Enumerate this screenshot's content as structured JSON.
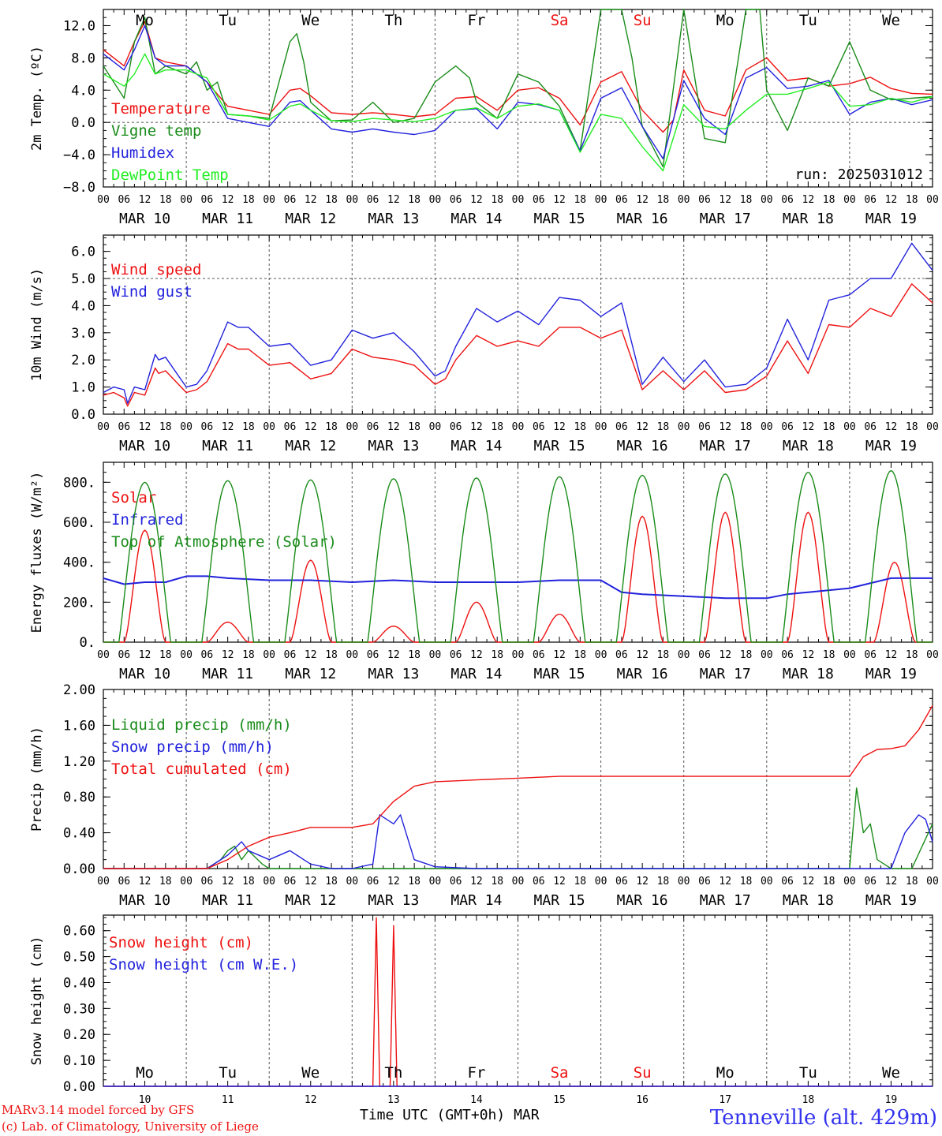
{
  "colors": {
    "red": "#ee1111",
    "darkgreen": "#1a8c1a",
    "blue": "#2222dd",
    "lightgreen": "#22ee22",
    "grid": "#555555",
    "location": "#3333ee"
  },
  "header_days": [
    "Mo",
    "Tu",
    "We",
    "Th",
    "Fr",
    "Sa",
    "Su",
    "Mo",
    "Tu",
    "We"
  ],
  "weekend_days": [
    5,
    6
  ],
  "hour_ticks": [
    "00",
    "06",
    "12",
    "18"
  ],
  "date_labels": [
    "MAR 10",
    "MAR 11",
    "MAR 12",
    "MAR 13",
    "MAR 14",
    "MAR 15",
    "MAR 16",
    "MAR 17",
    "MAR 18",
    "MAR 19"
  ],
  "bottom_day_numbers": [
    "10",
    "11",
    "12",
    "13",
    "14",
    "15",
    "16",
    "17",
    "18",
    "19"
  ],
  "footer": {
    "model": "MARv3.14 model forced by GFS",
    "lab": "(c) Lab. of Climatology, University of Liege",
    "xlabel": "Time UTC (GMT+0h)",
    "month": "MAR",
    "location": "Tenneville (alt. 429m)"
  },
  "chart_data": [
    {
      "type": "line",
      "ylabel": "2m Temp. (ºC)",
      "ylim": [
        -8,
        14
      ],
      "yticks": [
        "12.0",
        "8.0",
        "4.0",
        "0.0",
        "−4.0",
        "−8.0"
      ],
      "ytick_values": [
        12,
        8,
        4,
        0,
        -4,
        -8
      ],
      "dashed_ref": 0,
      "annotation": "run: 2025031012",
      "x_unit": "hours since MAR 10 00 UTC",
      "series": [
        {
          "name": "Temperature",
          "color": "red",
          "x": [
            0,
            6,
            9,
            12,
            15,
            18,
            24,
            30,
            36,
            42,
            48,
            54,
            57,
            60,
            66,
            72,
            78,
            84,
            90,
            96,
            102,
            108,
            114,
            120,
            126,
            132,
            138,
            144,
            150,
            156,
            162,
            165,
            168,
            174,
            180,
            186,
            192,
            198,
            204,
            210,
            216,
            222,
            228,
            234,
            240
          ],
          "y": [
            9,
            7,
            10,
            12.5,
            8,
            7.5,
            7,
            5,
            2,
            1.5,
            1,
            4,
            4.2,
            3.3,
            1.2,
            1,
            1.2,
            1,
            0.7,
            1,
            3,
            3.2,
            1.5,
            4,
            4.3,
            3,
            -0.3,
            5,
            6.3,
            1.5,
            -1.2,
            0.3,
            6.5,
            1.5,
            0.8,
            6.5,
            8,
            5.2,
            5.5,
            4.5,
            4.8,
            5.6,
            4.2,
            3.6,
            3.5
          ]
        },
        {
          "name": "Vigne temp",
          "color": "darkgreen",
          "x": [
            0,
            6,
            9,
            12,
            15,
            18,
            24,
            27,
            30,
            33,
            36,
            42,
            48,
            54,
            56,
            58,
            60,
            66,
            72,
            78,
            84,
            90,
            96,
            102,
            106,
            108,
            114,
            120,
            126,
            132,
            138,
            144,
            150,
            153,
            156,
            162,
            168,
            174,
            180,
            186,
            190,
            192,
            198,
            204,
            210,
            216,
            222,
            228,
            234,
            240
          ],
          "y": [
            7,
            3,
            10,
            13,
            6,
            7,
            6,
            7.5,
            4,
            5,
            1,
            0.8,
            0.5,
            10,
            11,
            7.5,
            2.5,
            0.2,
            0.3,
            2.5,
            0,
            0.5,
            5,
            7,
            5.5,
            2.5,
            0.5,
            6,
            5,
            2,
            -3.5,
            14,
            15,
            8,
            -0.5,
            -5.5,
            15,
            -2,
            -2.5,
            15,
            14,
            4,
            -1,
            5.5,
            4.5,
            10,
            4,
            2.8,
            3,
            3.2
          ]
        },
        {
          "name": "Humidex",
          "color": "blue",
          "x": [
            0,
            6,
            9,
            12,
            15,
            18,
            24,
            30,
            36,
            42,
            48,
            54,
            57,
            60,
            66,
            72,
            78,
            84,
            90,
            96,
            102,
            108,
            114,
            120,
            126,
            132,
            138,
            144,
            150,
            156,
            162,
            168,
            174,
            180,
            186,
            192,
            198,
            204,
            210,
            216,
            222,
            228,
            234,
            240
          ],
          "y": [
            8.5,
            6.5,
            9,
            12,
            8,
            7,
            7,
            5,
            0.5,
            0,
            -0.5,
            2.5,
            2.7,
            1.5,
            -0.8,
            -1.2,
            -0.8,
            -1.2,
            -1.5,
            -1,
            1.5,
            1.7,
            -0.8,
            2.5,
            2.2,
            1.5,
            -3.5,
            3,
            4.3,
            -0.5,
            -4.5,
            5.2,
            0.5,
            -1.5,
            5.5,
            6.8,
            4.2,
            4.5,
            5.2,
            1,
            2.5,
            3,
            2.2,
            2.8
          ]
        },
        {
          "name": "DewPoint Temp",
          "color": "lightgreen",
          "x": [
            0,
            6,
            9,
            12,
            15,
            18,
            24,
            30,
            36,
            42,
            48,
            54,
            57,
            60,
            66,
            72,
            78,
            84,
            90,
            96,
            102,
            108,
            114,
            120,
            126,
            132,
            138,
            144,
            150,
            156,
            162,
            168,
            174,
            180,
            186,
            192,
            198,
            204,
            210,
            216,
            222,
            228,
            234,
            240
          ],
          "y": [
            6,
            4.5,
            6,
            8.5,
            6,
            6.5,
            6.5,
            5.5,
            1,
            0.8,
            0.3,
            2,
            2.3,
            1.5,
            0.2,
            0.1,
            0.5,
            0.3,
            0.1,
            0.5,
            1.5,
            1.8,
            0.5,
            2,
            2.3,
            1.5,
            -3.7,
            1,
            0.5,
            -3,
            -6,
            2.2,
            -0.5,
            -0.8,
            1.5,
            3.5,
            3.5,
            4.2,
            5,
            2,
            2.2,
            3,
            2.5,
            3.2
          ]
        }
      ]
    },
    {
      "type": "line",
      "ylabel": "10m Wind (m/s)",
      "ylim": [
        0,
        6.6
      ],
      "yticks": [
        "6.0",
        "5.0",
        "4.0",
        "3.0",
        "2.0",
        "1.0",
        "0.0"
      ],
      "ytick_values": [
        6,
        5,
        4,
        3,
        2,
        1,
        0
      ],
      "dashed_ref": 5,
      "x_unit": "hours since MAR 10 00 UTC",
      "series": [
        {
          "name": "Wind speed",
          "color": "red",
          "x": [
            0,
            3,
            6,
            7,
            9,
            12,
            15,
            16,
            18,
            24,
            27,
            30,
            36,
            39,
            42,
            48,
            54,
            60,
            66,
            72,
            78,
            84,
            90,
            96,
            99,
            102,
            108,
            114,
            120,
            126,
            132,
            138,
            144,
            150,
            156,
            162,
            168,
            174,
            180,
            186,
            192,
            198,
            204,
            210,
            216,
            222,
            228,
            234,
            240
          ],
          "y": [
            0.7,
            0.8,
            0.6,
            0.3,
            0.8,
            0.7,
            1.7,
            1.5,
            1.6,
            0.8,
            0.9,
            1.2,
            2.6,
            2.4,
            2.4,
            1.8,
            1.9,
            1.3,
            1.5,
            2.4,
            2.1,
            2,
            1.8,
            1.1,
            1.3,
            2,
            2.9,
            2.5,
            2.7,
            2.5,
            3.2,
            3.2,
            2.8,
            3.1,
            0.9,
            1.6,
            0.9,
            1.6,
            0.8,
            0.9,
            1.4,
            2.7,
            1.5,
            3.3,
            3.2,
            3.9,
            3.6,
            4.8,
            4.1
          ]
        },
        {
          "name": "Wind gust",
          "color": "blue",
          "x": [
            0,
            3,
            6,
            7,
            9,
            12,
            15,
            16,
            18,
            24,
            27,
            30,
            36,
            39,
            42,
            48,
            54,
            60,
            66,
            72,
            78,
            84,
            90,
            96,
            99,
            102,
            108,
            114,
            120,
            126,
            132,
            138,
            144,
            150,
            156,
            162,
            168,
            174,
            180,
            186,
            192,
            198,
            204,
            210,
            216,
            222,
            228,
            234,
            240
          ],
          "y": [
            0.8,
            1.0,
            0.9,
            0.4,
            1.0,
            0.9,
            2.2,
            2.0,
            2.1,
            1.0,
            1.1,
            1.6,
            3.4,
            3.2,
            3.2,
            2.5,
            2.6,
            1.8,
            2.0,
            3.1,
            2.8,
            3.0,
            2.3,
            1.4,
            1.6,
            2.5,
            3.9,
            3.4,
            3.8,
            3.3,
            4.3,
            4.2,
            3.6,
            4.1,
            1.1,
            2.1,
            1.2,
            2.0,
            1.0,
            1.1,
            1.7,
            3.5,
            2.0,
            4.2,
            4.4,
            5.0,
            5.0,
            6.3,
            5.3
          ]
        }
      ]
    },
    {
      "type": "line",
      "ylabel": "Energy fluxes (W/m²)",
      "ylim": [
        0,
        900
      ],
      "yticks": [
        "800.",
        "600.",
        "400.",
        "200.",
        "0."
      ],
      "ytick_values": [
        800,
        600,
        400,
        200,
        0
      ],
      "x_unit": "hours since MAR 10 00 UTC",
      "series": [
        {
          "name": "Solar",
          "color": "red",
          "peaks": [
            560,
            100,
            410,
            80,
            200,
            140,
            630,
            650,
            650,
            400
          ],
          "peak_hours": [
            12,
            12,
            12,
            12,
            12,
            12,
            12,
            12,
            12,
            13
          ]
        },
        {
          "name": "Infrared",
          "color": "blue",
          "x": [
            0,
            6,
            12,
            18,
            24,
            30,
            36,
            48,
            60,
            72,
            84,
            96,
            108,
            120,
            132,
            144,
            150,
            156,
            168,
            180,
            192,
            198,
            204,
            216,
            228,
            240
          ],
          "y": [
            320,
            290,
            300,
            300,
            330,
            330,
            320,
            310,
            310,
            300,
            310,
            300,
            300,
            300,
            310,
            310,
            250,
            240,
            230,
            220,
            220,
            240,
            250,
            270,
            320,
            320
          ]
        },
        {
          "name": "Top of Atmosphere (Solar)",
          "color": "darkgreen",
          "peaks": [
            800,
            808,
            812,
            818,
            822,
            828,
            835,
            842,
            850,
            858
          ],
          "peak_hours": [
            12,
            12,
            12,
            12,
            12,
            12,
            12,
            12,
            12,
            12
          ]
        }
      ]
    },
    {
      "type": "line",
      "ylabel": "Precip (mm/h)",
      "ylim": [
        0,
        2
      ],
      "yticks": [
        "2.00",
        "1.60",
        "1.20",
        "0.80",
        "0.40",
        "0.00"
      ],
      "ytick_values": [
        2,
        1.6,
        1.2,
        0.8,
        0.4,
        0
      ],
      "x_unit": "hours since MAR 10 00 UTC",
      "series": [
        {
          "name": "Liquid precip (mm/h)",
          "color": "darkgreen",
          "x": [
            0,
            30,
            34,
            36,
            38,
            40,
            42,
            46,
            48,
            216,
            218,
            220,
            222,
            224,
            226,
            228,
            234,
            240
          ],
          "y": [
            0,
            0,
            0.1,
            0.2,
            0.25,
            0.1,
            0.2,
            0.05,
            0,
            0,
            0.9,
            0.4,
            0.5,
            0.1,
            0.05,
            0,
            0,
            0.5
          ]
        },
        {
          "name": "Snow precip (mm/h)",
          "color": "blue",
          "x": [
            0,
            30,
            36,
            40,
            42,
            48,
            54,
            58,
            60,
            66,
            72,
            78,
            80,
            84,
            86,
            90,
            96,
            108,
            120,
            132,
            144,
            216,
            228,
            232,
            236,
            238,
            240
          ],
          "y": [
            0,
            0,
            0.15,
            0.3,
            0.2,
            0.1,
            0.2,
            0.1,
            0.05,
            0,
            0,
            0.05,
            0.6,
            0.5,
            0.6,
            0.1,
            0.02,
            0,
            0,
            0,
            0,
            0,
            0,
            0.4,
            0.6,
            0.55,
            0.3
          ]
        },
        {
          "name": "Total cumulated (cm)",
          "color": "red",
          "x": [
            0,
            30,
            36,
            42,
            48,
            54,
            60,
            66,
            72,
            78,
            84,
            90,
            96,
            102,
            108,
            120,
            132,
            144,
            156,
            168,
            180,
            192,
            204,
            216,
            220,
            224,
            228,
            232,
            236,
            240
          ],
          "y": [
            0,
            0,
            0.1,
            0.25,
            0.35,
            0.4,
            0.46,
            0.46,
            0.46,
            0.5,
            0.75,
            0.92,
            0.97,
            0.98,
            0.99,
            1.01,
            1.03,
            1.03,
            1.03,
            1.03,
            1.03,
            1.03,
            1.03,
            1.03,
            1.25,
            1.33,
            1.34,
            1.37,
            1.55,
            1.82
          ]
        }
      ]
    },
    {
      "type": "line",
      "ylabel": "Snow height (cm)",
      "ylim": [
        0,
        0.66
      ],
      "yticks": [
        "0.60",
        "0.50",
        "0.40",
        "0.30",
        "0.20",
        "0.10",
        "0.00"
      ],
      "ytick_values": [
        0.6,
        0.5,
        0.4,
        0.3,
        0.2,
        0.1,
        0
      ],
      "x_unit": "hours since MAR 10 00 UTC",
      "series": [
        {
          "name": "Snow height (cm)",
          "color": "red",
          "x": [
            0,
            78,
            79,
            80,
            81,
            83,
            84,
            85,
            86,
            240
          ],
          "y": [
            0,
            0,
            0.65,
            0,
            0,
            0,
            0.62,
            0,
            0,
            0
          ]
        },
        {
          "name": "Snow height (cm W.E.)",
          "color": "blue",
          "x": [
            0,
            240
          ],
          "y": [
            0,
            0
          ]
        }
      ]
    }
  ]
}
